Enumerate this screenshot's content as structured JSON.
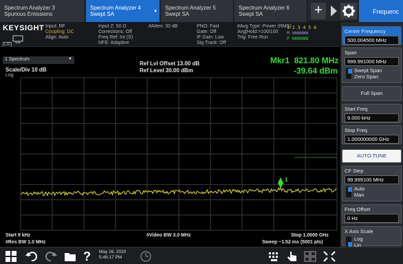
{
  "tabs": [
    {
      "label": "Spectrum Analyzer 3",
      "sub": "Spurious Emissions"
    },
    {
      "label": "Spectrum Analyzer 4",
      "sub": "Swept SA"
    },
    {
      "label": "Spectrum Analyzer 5",
      "sub": "Swept SA"
    },
    {
      "label": "Spectrum Analyzer 6",
      "sub": "Swept SA"
    }
  ],
  "frequency_tab": "Frequenc",
  "brand": "KEYSIGHT",
  "lxi": "LXI",
  "settings": {
    "col1": [
      "Input: RF",
      "Coupling: DC",
      "Align: Auto"
    ],
    "col2": [
      "Input Z: 50 Ω",
      "Corrections: Off",
      "Freq Ref: Int (S)",
      "NFE: Adaptive"
    ],
    "col3": [
      "#Atten: 30 dB"
    ],
    "col4": [
      "PNO: Fast",
      "Gate: Off",
      "IF Gain: Low",
      "Sig Track: Off"
    ],
    "col5": [
      "#Avg Type: Power (RMS)",
      "Avg|Hold:>100/100",
      "Trig: Free Run"
    ],
    "trace_rows": [
      "1 2 3 4 5 6",
      "M WWWWWW",
      "P NNNNNN"
    ]
  },
  "display": {
    "window_title": "1 Spectrum",
    "scale": "Scale/Div 10 dB",
    "scale_type": "Log",
    "ref_offset": "Ref Lvl Offset 13.00 dB",
    "ref_level": "Ref Level 30.00 dBm",
    "marker_label": "Mkr1",
    "marker_freq": "821.80 MHz",
    "marker_amp": "-39.64 dBm",
    "marker_number": "1",
    "start": "Start 9 kHz",
    "res_bw": "#Res BW 1.0 MHz",
    "video_bw": "#Video BW 3.0 MHz",
    "stop": "Stop 1.0000 GHz",
    "sweep": "Sweep ~1.52 ms (5001 pts)"
  },
  "softkeys": {
    "center_freq": {
      "label": "Center Frequency",
      "value": "500.004500 MHz"
    },
    "span": {
      "label": "Span",
      "value": "999.991000 MHz"
    },
    "swept_span": "Swept Span",
    "zero_span": "Zero Span",
    "full_span": "Full Span",
    "start_freq": {
      "label": "Start Freq",
      "value": "9.000 kHz"
    },
    "stop_freq": {
      "label": "Stop Freq",
      "value": "1.000000000 GHz"
    },
    "auto_tune": "AUTO TUNE",
    "cf_step": {
      "label": "CF Step",
      "value": "99.999100 MHz"
    },
    "auto": "Auto",
    "man": "Man",
    "freq_offset": {
      "label": "Freq Offset",
      "value": "0 Hz"
    },
    "x_axis_scale": "X Axis Scale",
    "log": "Log",
    "lin": "Lin"
  },
  "taskbar": {
    "date": "May 26, 2020",
    "time": "5:46:17 PM"
  },
  "colors": {
    "trace": "#e6e62a",
    "marker": "#33dd33",
    "accent": "#1f6fd0",
    "threshold": "#3a6e3a"
  },
  "icons": [
    "windows-icon",
    "undo-icon",
    "redo-icon",
    "folder-icon",
    "help-icon",
    "clock-icon",
    "keyboard-icon",
    "touch-icon",
    "grid-icon",
    "fullscreen-icon"
  ]
}
